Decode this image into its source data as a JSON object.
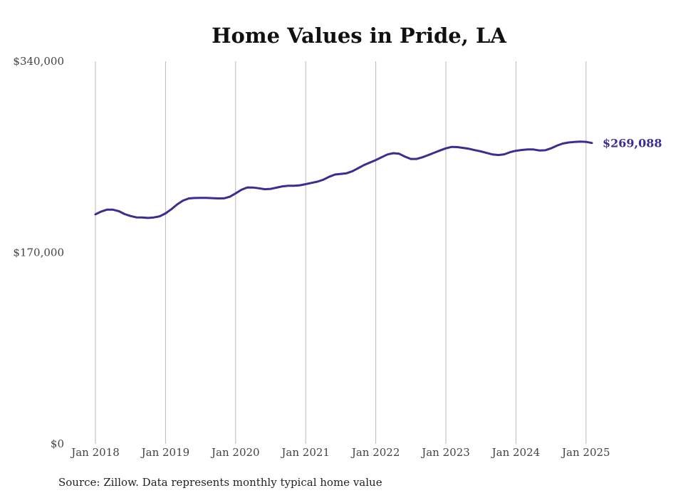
{
  "chart_data": {
    "type": "line",
    "title": "Home Values in Pride, LA",
    "xlabel": "",
    "ylabel": "",
    "x_ticks": [
      "Jan 2018",
      "Jan 2019",
      "Jan 2020",
      "Jan 2021",
      "Jan 2022",
      "Jan 2023",
      "Jan 2024",
      "Jan 2025"
    ],
    "y_ticks": [
      "$0",
      "$170,000",
      "$340,000"
    ],
    "y_tick_values": [
      0,
      170000,
      340000
    ],
    "ylim": [
      0,
      340000
    ],
    "xlim": [
      "2018-01",
      "2025-07"
    ],
    "grid": "vertical",
    "line_color": "#3a2f8f",
    "end_label": "$269,088",
    "series": [
      {
        "values": [
          [
            "2018-01",
            204000
          ],
          [
            "2018-02",
            206500
          ],
          [
            "2018-03",
            208200
          ],
          [
            "2018-04",
            208100
          ],
          [
            "2018-05",
            206800
          ],
          [
            "2018-06",
            204200
          ],
          [
            "2018-07",
            202500
          ],
          [
            "2018-08",
            201300
          ],
          [
            "2018-09",
            201200
          ],
          [
            "2018-10",
            200800
          ],
          [
            "2018-11",
            201200
          ],
          [
            "2018-12",
            202200
          ],
          [
            "2019-01",
            204800
          ],
          [
            "2019-02",
            208500
          ],
          [
            "2019-03",
            212800
          ],
          [
            "2019-04",
            216200
          ],
          [
            "2019-05",
            218100
          ],
          [
            "2019-06",
            218500
          ],
          [
            "2019-07",
            218600
          ],
          [
            "2019-08",
            218600
          ],
          [
            "2019-09",
            218400
          ],
          [
            "2019-10",
            218100
          ],
          [
            "2019-11",
            218200
          ],
          [
            "2019-12",
            219600
          ],
          [
            "2020-01",
            222600
          ],
          [
            "2020-02",
            225800
          ],
          [
            "2020-03",
            227900
          ],
          [
            "2020-04",
            227800
          ],
          [
            "2020-05",
            227100
          ],
          [
            "2020-06",
            226300
          ],
          [
            "2020-07",
            226600
          ],
          [
            "2020-08",
            227700
          ],
          [
            "2020-09",
            228800
          ],
          [
            "2020-10",
            229300
          ],
          [
            "2020-11",
            229400
          ],
          [
            "2020-12",
            229800
          ],
          [
            "2021-01",
            230800
          ],
          [
            "2021-02",
            231900
          ],
          [
            "2021-03",
            233000
          ],
          [
            "2021-04",
            234700
          ],
          [
            "2021-05",
            237300
          ],
          [
            "2021-06",
            239300
          ],
          [
            "2021-07",
            239900
          ],
          [
            "2021-08",
            240500
          ],
          [
            "2021-09",
            242300
          ],
          [
            "2021-10",
            245000
          ],
          [
            "2021-11",
            247800
          ],
          [
            "2021-12",
            250000
          ],
          [
            "2022-01",
            252200
          ],
          [
            "2022-02",
            254700
          ],
          [
            "2022-03",
            257200
          ],
          [
            "2022-04",
            258300
          ],
          [
            "2022-05",
            257800
          ],
          [
            "2022-06",
            255200
          ],
          [
            "2022-07",
            253200
          ],
          [
            "2022-08",
            253200
          ],
          [
            "2022-09",
            254700
          ],
          [
            "2022-10",
            256700
          ],
          [
            "2022-11",
            258700
          ],
          [
            "2022-12",
            260700
          ],
          [
            "2023-01",
            262600
          ],
          [
            "2023-02",
            263900
          ],
          [
            "2023-03",
            263700
          ],
          [
            "2023-04",
            263000
          ],
          [
            "2023-05",
            262200
          ],
          [
            "2023-06",
            261000
          ],
          [
            "2023-07",
            259900
          ],
          [
            "2023-08",
            258500
          ],
          [
            "2023-09",
            257200
          ],
          [
            "2023-10",
            256700
          ],
          [
            "2023-11",
            257300
          ],
          [
            "2023-12",
            259200
          ],
          [
            "2024-01",
            260500
          ],
          [
            "2024-02",
            261200
          ],
          [
            "2024-03",
            261700
          ],
          [
            "2024-04",
            261600
          ],
          [
            "2024-05",
            260700
          ],
          [
            "2024-06",
            260900
          ],
          [
            "2024-07",
            262600
          ],
          [
            "2024-08",
            265000
          ],
          [
            "2024-09",
            266900
          ],
          [
            "2024-10",
            267800
          ],
          [
            "2024-11",
            268300
          ],
          [
            "2024-12",
            268600
          ],
          [
            "2025-01",
            268400
          ],
          [
            "2025-02",
            267400
          ]
        ]
      }
    ]
  },
  "source_note": "Source: Zillow. Data represents monthly typical home value"
}
